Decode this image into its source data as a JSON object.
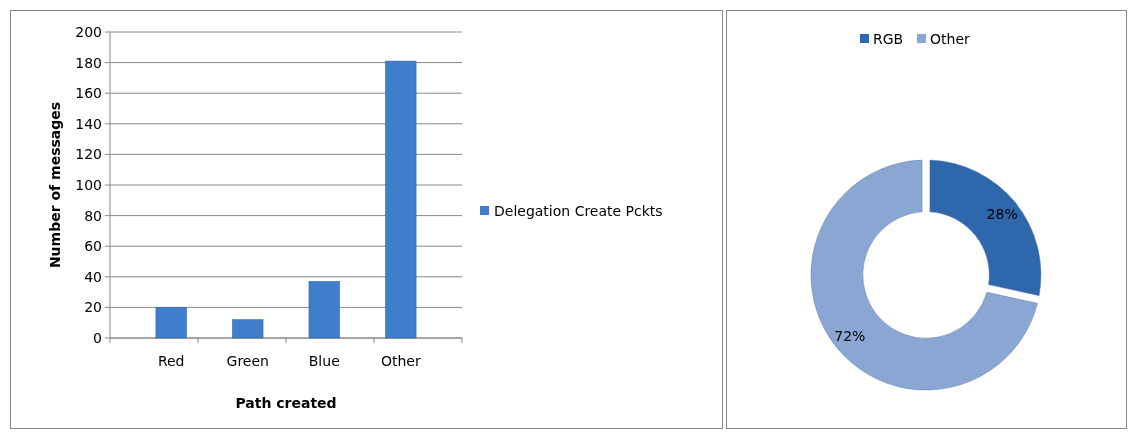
{
  "chart_data": [
    {
      "type": "bar",
      "xlabel": "Path created",
      "ylabel": "Number of messages",
      "categories": [
        "Red",
        "Green",
        "Blue",
        "Other"
      ],
      "series": [
        {
          "name": "Delegation Create Pckts",
          "color": "#3f7fcc",
          "values": [
            20,
            12,
            37,
            181
          ]
        }
      ],
      "ylim": [
        0,
        200
      ],
      "yticks": [
        0,
        20,
        40,
        60,
        80,
        100,
        120,
        140,
        160,
        180,
        200
      ],
      "grid": "y",
      "legend": "right"
    },
    {
      "type": "donut",
      "categories": [
        "RGB",
        "Other"
      ],
      "values": [
        28,
        72
      ],
      "colors": [
        "#2f67ad",
        "#8aa6d3"
      ],
      "value_labels": [
        "28%",
        "72%"
      ],
      "legend": "top"
    }
  ]
}
